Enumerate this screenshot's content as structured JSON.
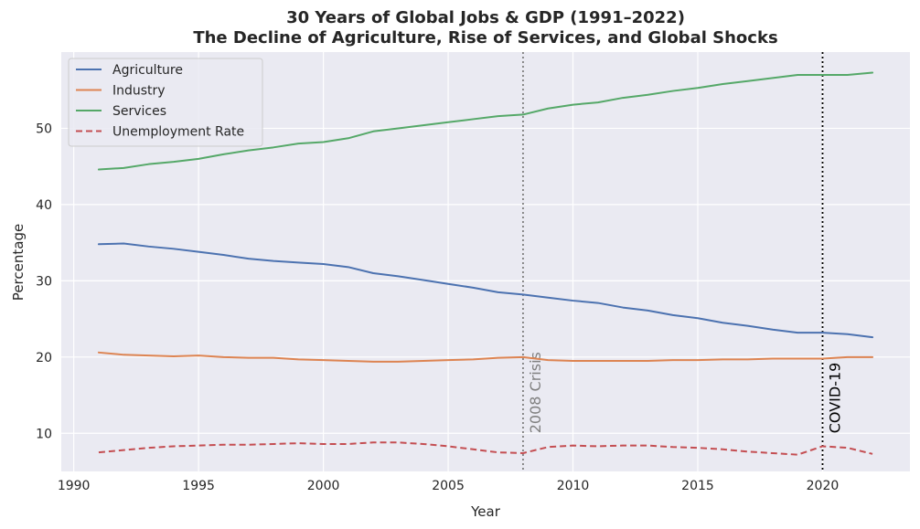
{
  "chart_data": {
    "type": "line",
    "title": "30 Years of Global Jobs & GDP (1991–2022)",
    "subtitle": "The Decline of Agriculture, Rise of Services, and Global Shocks",
    "xlabel": "Year",
    "ylabel": "Percentage",
    "xlim": [
      1989.5,
      2023.5
    ],
    "ylim": [
      5,
      60
    ],
    "xticks": [
      1990,
      1995,
      2000,
      2005,
      2010,
      2015,
      2020
    ],
    "yticks": [
      10,
      20,
      30,
      40,
      50
    ],
    "grid": true,
    "legend_position": "top-left",
    "x": [
      1991,
      1992,
      1993,
      1994,
      1995,
      1996,
      1997,
      1998,
      1999,
      2000,
      2001,
      2002,
      2003,
      2004,
      2005,
      2006,
      2007,
      2008,
      2009,
      2010,
      2011,
      2012,
      2013,
      2014,
      2015,
      2016,
      2017,
      2018,
      2019,
      2020,
      2021,
      2022
    ],
    "series": [
      {
        "name": "Agriculture",
        "color": "#4c72b0",
        "style": "solid",
        "values": [
          34.8,
          34.9,
          34.5,
          34.2,
          33.8,
          33.4,
          32.9,
          32.6,
          32.4,
          32.2,
          31.8,
          31.0,
          30.6,
          30.1,
          29.6,
          29.1,
          28.5,
          28.2,
          27.8,
          27.4,
          27.1,
          26.5,
          26.1,
          25.5,
          25.1,
          24.5,
          24.1,
          23.6,
          23.2,
          23.2,
          23.0,
          22.6
        ]
      },
      {
        "name": "Industry",
        "color": "#dd8452",
        "style": "solid",
        "values": [
          20.6,
          20.3,
          20.2,
          20.1,
          20.2,
          20.0,
          19.9,
          19.9,
          19.7,
          19.6,
          19.5,
          19.4,
          19.4,
          19.5,
          19.6,
          19.7,
          19.9,
          20.0,
          19.6,
          19.5,
          19.5,
          19.5,
          19.5,
          19.6,
          19.6,
          19.7,
          19.7,
          19.8,
          19.8,
          19.8,
          20.0,
          20.0
        ]
      },
      {
        "name": "Services",
        "color": "#55a868",
        "style": "solid",
        "values": [
          44.6,
          44.8,
          45.3,
          45.6,
          46.0,
          46.6,
          47.1,
          47.5,
          48.0,
          48.2,
          48.7,
          49.6,
          50.0,
          50.4,
          50.8,
          51.2,
          51.6,
          51.8,
          52.6,
          53.1,
          53.4,
          54.0,
          54.4,
          54.9,
          55.3,
          55.8,
          56.2,
          56.6,
          57.0,
          57.0,
          57.0,
          57.3
        ]
      },
      {
        "name": "Unemployment Rate",
        "color": "#c44e52",
        "style": "dashed",
        "values": [
          7.5,
          7.8,
          8.1,
          8.3,
          8.4,
          8.5,
          8.5,
          8.6,
          8.7,
          8.6,
          8.6,
          8.8,
          8.8,
          8.6,
          8.3,
          7.9,
          7.5,
          7.4,
          8.2,
          8.4,
          8.3,
          8.4,
          8.4,
          8.2,
          8.1,
          7.9,
          7.6,
          7.4,
          7.2,
          8.3,
          8.1,
          7.3
        ]
      }
    ],
    "annotations": [
      {
        "label": "2008 Crisis",
        "x": 2008,
        "color": "#808080",
        "style": "dotted"
      },
      {
        "label": "COVID-19",
        "x": 2020,
        "color": "#000000",
        "style": "dotted"
      }
    ],
    "background_color": "#eaeaf2",
    "grid_color": "#ffffff"
  }
}
